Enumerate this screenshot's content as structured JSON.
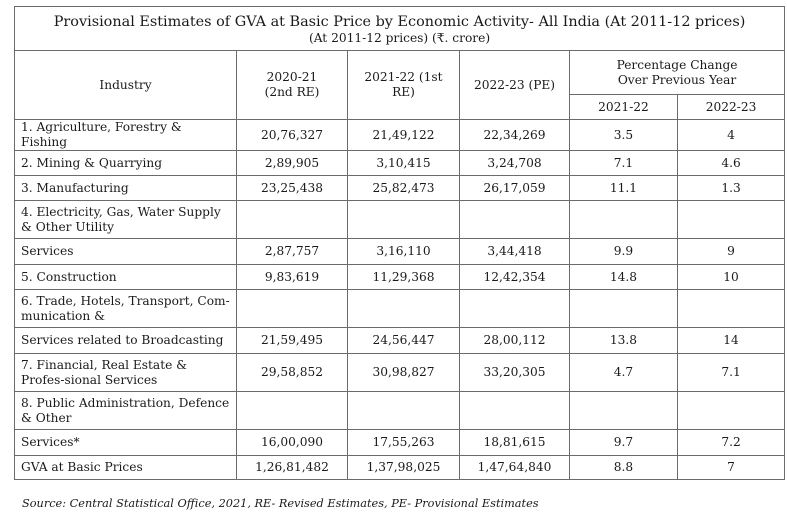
{
  "title": "Provisional Estimates of GVA at Basic Price by Economic Activity- All India (At 2011-12 prices)",
  "subtitle": "(At 2011-12 prices) (₹. crore)",
  "headers": {
    "industry": "Industry",
    "col_2020_21_line1": "2020-21",
    "col_2020_21_line2": "(2nd RE)",
    "col_2021_22": "2021-22 (1st RE)",
    "col_2022_23": "2022-23 (PE)",
    "pct_line1": "Percentage Change",
    "pct_line2": "Over Previous Year",
    "pct_2021_22": "2021-22",
    "pct_2022_23": "2022-23"
  },
  "rows": [
    {
      "industry": "1. Agriculture, Forestry & Fishing",
      "v2021": "20,76,327",
      "v2122": "21,49,122",
      "v2223": "22,34,269",
      "p2122": "3.5",
      "p2223": "4"
    },
    {
      "industry": "2. Mining & Quarrying",
      "v2021": "2,89,905",
      "v2122": "3,10,415",
      "v2223": "3,24,708",
      "p2122": "7.1",
      "p2223": "4.6"
    },
    {
      "industry": "3. Manufacturing",
      "v2021": "23,25,438",
      "v2122": "25,82,473",
      "v2223": "26,17,059",
      "p2122": "11.1",
      "p2223": "1.3"
    },
    {
      "industry": "4. Electricity, Gas, Water Supply & Other Utility",
      "v2021": "",
      "v2122": "",
      "v2223": "",
      "p2122": "",
      "p2223": ""
    },
    {
      "industry": "Services",
      "v2021": "2,87,757",
      "v2122": "3,16,110",
      "v2223": "3,44,418",
      "p2122": "9.9",
      "p2223": "9"
    },
    {
      "industry": "5. Construction",
      "v2021": "9,83,619",
      "v2122": "11,29,368",
      "v2223": "12,42,354",
      "p2122": "14.8",
      "p2223": "10"
    },
    {
      "industry": "6. Trade, Hotels, Transport, Com-munication &",
      "v2021": "",
      "v2122": "",
      "v2223": "",
      "p2122": "",
      "p2223": ""
    },
    {
      "industry": "Services related to Broadcasting",
      "v2021": "21,59,495",
      "v2122": "24,56,447",
      "v2223": "28,00,112",
      "p2122": "13.8",
      "p2223": "14"
    },
    {
      "industry": "7. Financial, Real Estate & Profes-sional Services",
      "v2021": "29,58,852",
      "v2122": "30,98,827",
      "v2223": "33,20,305",
      "p2122": "4.7",
      "p2223": "7.1"
    },
    {
      "industry": "8. Public Administration, Defence & Other",
      "v2021": "",
      "v2122": "",
      "v2223": "",
      "p2122": "",
      "p2223": ""
    },
    {
      "industry": "Services*",
      "v2021": "16,00,090",
      "v2122": "17,55,263",
      "v2223": "18,81,615",
      "p2122": "9.7",
      "p2223": "7.2"
    },
    {
      "industry": "GVA at Basic Prices",
      "v2021": "1,26,81,482",
      "v2122": "1,37,98,025",
      "v2223": "1,47,64,840",
      "p2122": "8.8",
      "p2223": "7"
    }
  ],
  "source": "Source: Central Statistical Office, 2021, RE- Revised Estimates, PE- Provisional Estimates"
}
